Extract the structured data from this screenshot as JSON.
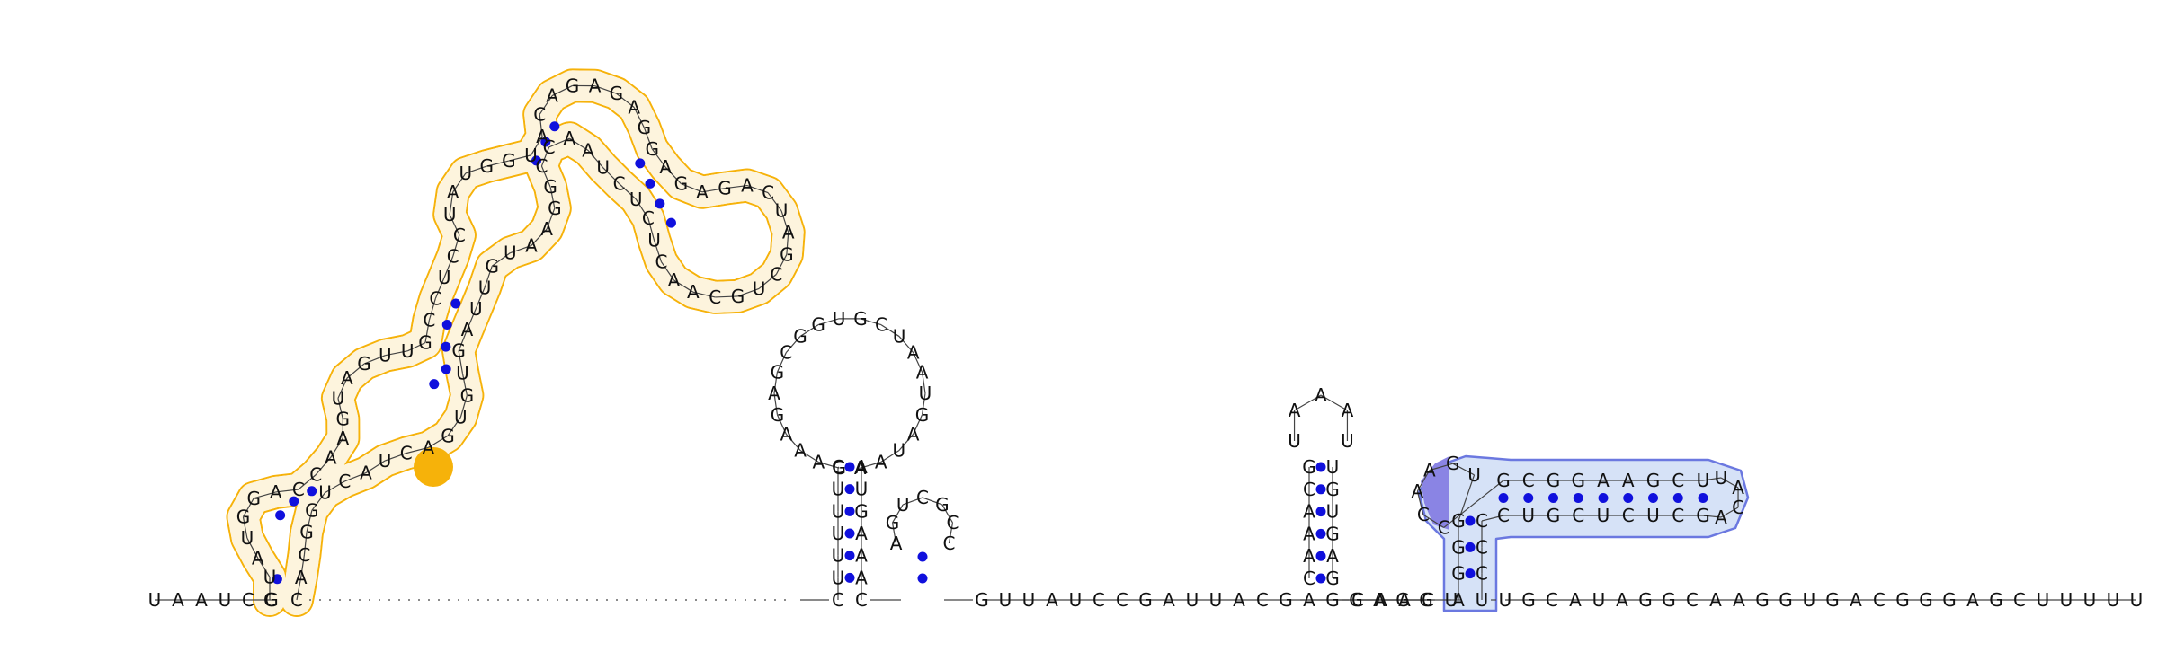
{
  "colors": {
    "backbone": "#444444",
    "base_text": "#111111",
    "pair_dot": "#1010dd",
    "domain_orange": "#f6b20a",
    "domain_orange_fill": "#fdf4dd",
    "domain_blue": "#6b78e0",
    "domain_blue_fill": "#d6e2f7",
    "highlight_purple": "#8a84e4"
  },
  "sequence": {
    "prefix": "UAAUCG",
    "orange_domain": "CUAUGGACCAAGUAGUUGCCUCCUAUGGUACAGAGAGGAGAGACUAGCUGCAACUCUCUAACCGGAAUGUUAGUGUGACUACUGGCAC",
    "spacer": "..........................",
    "hairpin_a": "CUUUUUCGAAAGAGCGGUGCUAAUGAUAAAUGAAAC",
    "hairpin_b": "AGUCGCC",
    "linker": "GUUAUCCGAUUACGAGGAGG",
    "hairpin_c": "CAAACGUAAAUUGUGAG",
    "linker2": "CAACU",
    "blue_domain": "AGGGUGAACCGCGGAAGCUUACAGCUCUCGUCCCCU",
    "tail": "UGCAUAGGCAAGGUGACGGGAGCUUUUU"
  }
}
